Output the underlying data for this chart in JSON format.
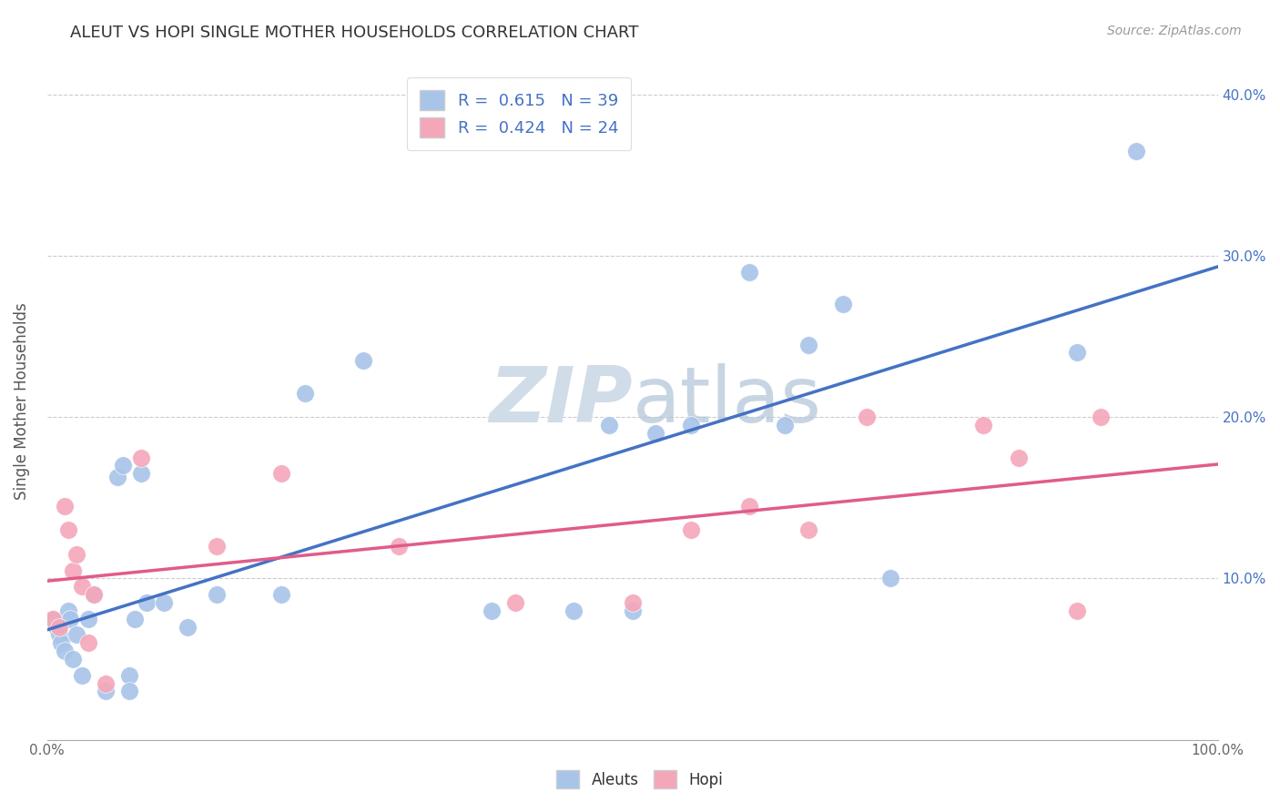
{
  "title": "ALEUT VS HOPI SINGLE MOTHER HOUSEHOLDS CORRELATION CHART",
  "source": "Source: ZipAtlas.com",
  "ylabel": "Single Mother Households",
  "xlim": [
    0,
    1.0
  ],
  "ylim": [
    0,
    0.42
  ],
  "xticks": [
    0.0,
    0.1,
    0.2,
    0.3,
    0.4,
    0.5,
    0.6,
    0.7,
    0.8,
    0.9,
    1.0
  ],
  "yticks": [
    0.0,
    0.1,
    0.2,
    0.3,
    0.4
  ],
  "xticklabels": [
    "0.0%",
    "",
    "",
    "",
    "",
    "",
    "",
    "",
    "",
    "",
    "100.0%"
  ],
  "yticklabels_right": [
    "",
    "10.0%",
    "20.0%",
    "30.0%",
    "40.0%"
  ],
  "aleuts_R": "0.615",
  "aleuts_N": "39",
  "hopi_R": "0.424",
  "hopi_N": "24",
  "aleuts_color": "#a8c4e8",
  "hopi_color": "#f4a7b9",
  "line_aleuts_color": "#4472C4",
  "line_hopi_color": "#E05C8A",
  "watermark_color": "#d0dce8",
  "aleuts_x": [
    0.005,
    0.008,
    0.01,
    0.012,
    0.015,
    0.018,
    0.02,
    0.022,
    0.025,
    0.03,
    0.035,
    0.04,
    0.05,
    0.06,
    0.065,
    0.07,
    0.07,
    0.075,
    0.08,
    0.085,
    0.1,
    0.12,
    0.145,
    0.2,
    0.22,
    0.27,
    0.38,
    0.45,
    0.48,
    0.5,
    0.52,
    0.55,
    0.6,
    0.63,
    0.65,
    0.68,
    0.72,
    0.88,
    0.93
  ],
  "aleuts_y": [
    0.075,
    0.07,
    0.065,
    0.06,
    0.055,
    0.08,
    0.075,
    0.05,
    0.065,
    0.04,
    0.075,
    0.09,
    0.03,
    0.163,
    0.17,
    0.04,
    0.03,
    0.075,
    0.165,
    0.085,
    0.085,
    0.07,
    0.09,
    0.09,
    0.215,
    0.235,
    0.08,
    0.08,
    0.195,
    0.08,
    0.19,
    0.195,
    0.29,
    0.195,
    0.245,
    0.27,
    0.1,
    0.24,
    0.365
  ],
  "hopi_x": [
    0.005,
    0.01,
    0.015,
    0.018,
    0.022,
    0.025,
    0.03,
    0.035,
    0.04,
    0.05,
    0.08,
    0.145,
    0.2,
    0.3,
    0.4,
    0.5,
    0.55,
    0.6,
    0.65,
    0.7,
    0.8,
    0.83,
    0.88,
    0.9
  ],
  "hopi_y": [
    0.075,
    0.07,
    0.145,
    0.13,
    0.105,
    0.115,
    0.095,
    0.06,
    0.09,
    0.035,
    0.175,
    0.12,
    0.165,
    0.12,
    0.085,
    0.085,
    0.13,
    0.145,
    0.13,
    0.2,
    0.195,
    0.175,
    0.08,
    0.2
  ],
  "background_color": "#ffffff",
  "grid_color": "#cccccc"
}
